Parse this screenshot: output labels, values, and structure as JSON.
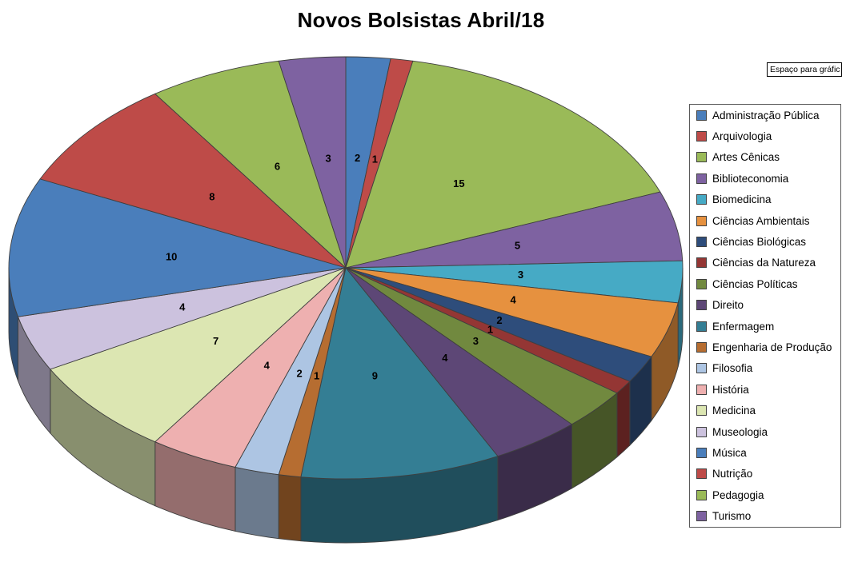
{
  "title": "Novos Bolsistas Abril/18",
  "textbox": {
    "label": "Espaço para gráfic"
  },
  "chart_data": {
    "type": "pie",
    "style": "3d",
    "title": "Novos Bolsistas Abril/18",
    "legend_position": "right",
    "start_angle": "top",
    "direction": "clockwise",
    "data_labels": "values",
    "total": 94,
    "categories": [
      "Administração Pública",
      "Arquivologia",
      "Artes Cênicas",
      "Biblioteconomia",
      "Biomedicina",
      "Ciências Ambientais",
      "Ciências Biológicas",
      "Ciências da Natureza",
      "Ciências Políticas",
      "Direito",
      "Enfermagem",
      "Engenharia de Produção",
      "Filosofia",
      "História",
      "Medicina",
      "Museologia",
      "Música",
      "Nutrição",
      "Pedagogia",
      "Turismo"
    ],
    "values": [
      2,
      1,
      15,
      5,
      3,
      4,
      2,
      1,
      3,
      4,
      9,
      1,
      2,
      4,
      7,
      4,
      10,
      8,
      6,
      3
    ],
    "colors": [
      "#4A7EBB",
      "#BE4B48",
      "#9ABA58",
      "#7E62A1",
      "#46AAC5",
      "#E6913F",
      "#2E4D7B",
      "#943634",
      "#71893F",
      "#5D4776",
      "#347E94",
      "#B66D31",
      "#ADC5E3",
      "#EEB0B0",
      "#DCE6B2",
      "#CCC2DE",
      "#4A7EBB",
      "#BE4B48",
      "#9ABA58",
      "#7E62A1"
    ],
    "outline_color": "#3f3f3f"
  }
}
